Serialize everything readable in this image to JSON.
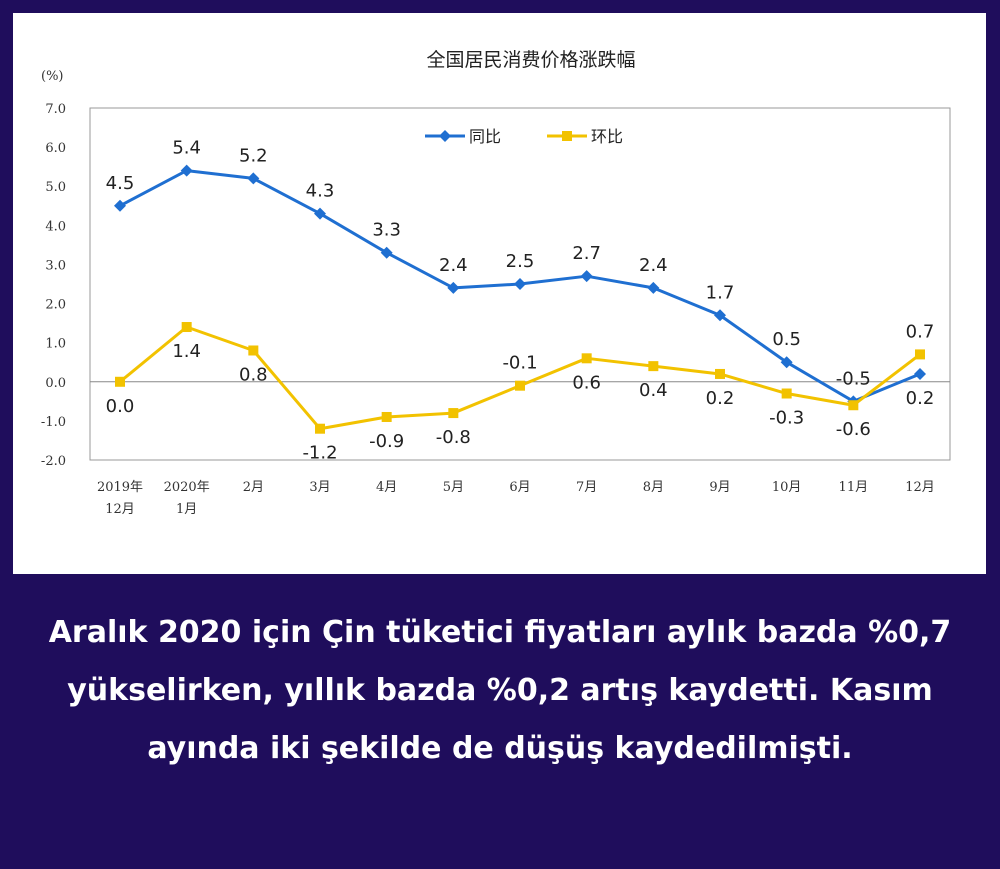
{
  "caption": "Aralık 2020 için Çin tüketici fiyatları aylık bazda %0,7 yükselirken, yıllık bazda %0,2 artış kaydetti. Kasım ayında iki şekilde de düşüş kaydedilmişti.",
  "chart_data": {
    "type": "line",
    "title": "全国居民消费价格涨跌幅",
    "ylabel": "(%)",
    "xlabel": "",
    "ylim": [
      -2.0,
      7.0
    ],
    "yticks": [
      "7.0",
      "6.0",
      "5.0",
      "4.0",
      "3.0",
      "2.0",
      "1.0",
      "0.0",
      "-1.0",
      "-2.0"
    ],
    "categories": [
      [
        "2019年",
        "12月"
      ],
      [
        "2020年",
        "1月"
      ],
      [
        "2月"
      ],
      [
        "3月"
      ],
      [
        "4月"
      ],
      [
        "5月"
      ],
      [
        "6月"
      ],
      [
        "7月"
      ],
      [
        "8月"
      ],
      [
        "9月"
      ],
      [
        "10月"
      ],
      [
        "11月"
      ],
      [
        "12月"
      ]
    ],
    "legend_position": "top-center",
    "grid": false,
    "series": [
      {
        "name": "同比",
        "color": "#1f6fd1",
        "marker": "diamond",
        "values": [
          4.5,
          5.4,
          5.2,
          4.3,
          3.3,
          2.4,
          2.5,
          2.7,
          2.4,
          1.7,
          0.5,
          -0.5,
          0.2
        ],
        "labels": [
          "4.5",
          "5.4",
          "5.2",
          "4.3",
          "3.3",
          "2.4",
          "2.5",
          "2.7",
          "2.4",
          "1.7",
          "0.5",
          "-0.5",
          "0.2"
        ]
      },
      {
        "name": "环比",
        "color": "#f2c200",
        "marker": "square",
        "values": [
          0.0,
          1.4,
          0.8,
          -1.2,
          -0.9,
          -0.8,
          -0.1,
          0.6,
          0.4,
          0.2,
          -0.3,
          -0.6,
          0.7
        ],
        "labels": [
          "0.0",
          "1.4",
          "0.8",
          "-1.2",
          "-0.9",
          "-0.8",
          "-0.1",
          "0.6",
          "0.4",
          "0.2",
          "-0.3",
          "-0.6",
          "0.7"
        ]
      }
    ]
  }
}
